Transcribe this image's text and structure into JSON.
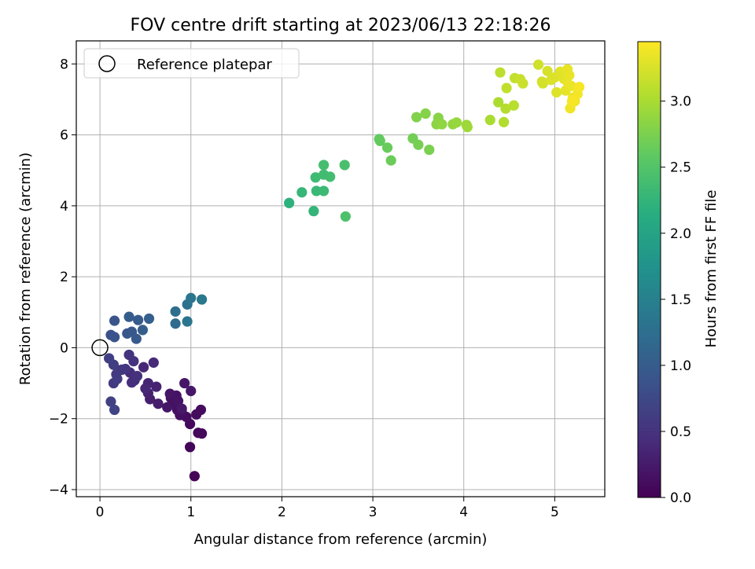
{
  "chart_data": {
    "type": "scatter",
    "title": "FOV centre drift starting at 2023/06/13 22:18:26",
    "xlabel": "Angular distance from reference (arcmin)",
    "ylabel": "Rotation from reference (arcmin)",
    "xlim": [
      -0.26,
      5.55
    ],
    "ylim": [
      -4.2,
      8.65
    ],
    "xticks": [
      0,
      1,
      2,
      3,
      4,
      5
    ],
    "xtick_labels": [
      "0",
      "1",
      "2",
      "3",
      "4",
      "5"
    ],
    "yticks": [
      -4,
      -2,
      0,
      2,
      4,
      6,
      8
    ],
    "ytick_labels": [
      "−4",
      "−2",
      "0",
      "2",
      "4",
      "6",
      "8"
    ],
    "grid": true,
    "legend": {
      "position": "top-left",
      "entries": [
        "Reference platepar"
      ]
    },
    "reference_point": {
      "x": 0,
      "y": 0,
      "label": "Reference platepar"
    },
    "colorbar": {
      "label": "Hours from first FF file",
      "range": [
        0,
        3.45
      ],
      "ticks": [
        0,
        0.5,
        1,
        1.5,
        2,
        2.5,
        3
      ],
      "tick_labels": [
        "0.0",
        "0.5",
        "1.0",
        "1.5",
        "2.0",
        "2.5",
        "3.0"
      ],
      "colormap": "viridis"
    },
    "points": [
      [
        1.04,
        -3.62,
        0.02
      ],
      [
        0.99,
        -2.8,
        0.05
      ],
      [
        1.08,
        -2.4,
        0.07
      ],
      [
        1.12,
        -2.42,
        0.08
      ],
      [
        0.99,
        -2.15,
        0.09
      ],
      [
        1.06,
        -1.88,
        0.1
      ],
      [
        1.11,
        -1.75,
        0.11
      ],
      [
        0.95,
        -1.95,
        0.12
      ],
      [
        0.9,
        -1.82,
        0.13
      ],
      [
        0.88,
        -1.9,
        0.14
      ],
      [
        0.85,
        -1.75,
        0.15
      ],
      [
        0.8,
        -1.55,
        0.16
      ],
      [
        0.78,
        -1.42,
        0.17
      ],
      [
        0.84,
        -1.35,
        0.18
      ],
      [
        0.86,
        -1.5,
        0.19
      ],
      [
        0.77,
        -1.3,
        0.2
      ],
      [
        0.74,
        -1.68,
        0.21
      ],
      [
        0.93,
        -1.0,
        0.22
      ],
      [
        1.0,
        -1.22,
        0.23
      ],
      [
        0.9,
        -1.72,
        0.24
      ],
      [
        0.64,
        -1.58,
        0.26
      ],
      [
        0.55,
        -1.45,
        0.28
      ],
      [
        0.53,
        -1.28,
        0.3
      ],
      [
        0.62,
        -1.1,
        0.32
      ],
      [
        0.53,
        -1.0,
        0.34
      ],
      [
        0.5,
        -1.15,
        0.36
      ],
      [
        0.48,
        -0.55,
        0.38
      ],
      [
        0.59,
        -0.42,
        0.4
      ],
      [
        0.38,
        -0.92,
        0.42
      ],
      [
        0.33,
        -0.7,
        0.44
      ],
      [
        0.35,
        -0.98,
        0.46
      ],
      [
        0.41,
        -0.8,
        0.48
      ],
      [
        0.37,
        -0.38,
        0.5
      ],
      [
        0.32,
        -0.2,
        0.52
      ],
      [
        0.28,
        -0.6,
        0.54
      ],
      [
        0.24,
        -0.62,
        0.56
      ],
      [
        0.18,
        -0.75,
        0.58
      ],
      [
        0.15,
        -1.0,
        0.6
      ],
      [
        0.19,
        -0.88,
        0.62
      ],
      [
        0.15,
        -0.48,
        0.63
      ],
      [
        0.1,
        -0.3,
        0.64
      ],
      [
        0.12,
        -1.52,
        0.66
      ],
      [
        0.16,
        -1.75,
        0.7
      ],
      [
        0.12,
        0.36,
        0.85
      ],
      [
        0.16,
        0.3,
        0.88
      ],
      [
        0.16,
        0.76,
        0.9
      ],
      [
        0.3,
        0.4,
        0.92
      ],
      [
        0.35,
        0.45,
        0.94
      ],
      [
        0.4,
        0.25,
        0.96
      ],
      [
        0.42,
        0.78,
        0.98
      ],
      [
        0.32,
        0.87,
        1.0
      ],
      [
        0.47,
        0.5,
        1.02
      ],
      [
        0.54,
        0.82,
        1.04
      ],
      [
        0.83,
        0.68,
        1.2
      ],
      [
        0.83,
        1.02,
        1.25
      ],
      [
        0.96,
        1.22,
        1.3
      ],
      [
        0.96,
        0.74,
        1.33
      ],
      [
        1.0,
        1.4,
        1.35
      ],
      [
        1.12,
        1.36,
        1.38
      ],
      [
        2.08,
        4.08,
        2.2
      ],
      [
        2.35,
        3.85,
        2.25
      ],
      [
        2.22,
        4.38,
        2.28
      ],
      [
        2.38,
        4.42,
        2.3
      ],
      [
        2.46,
        4.42,
        2.32
      ],
      [
        2.37,
        4.8,
        2.34
      ],
      [
        2.46,
        4.88,
        2.36
      ],
      [
        2.53,
        4.82,
        2.38
      ],
      [
        2.46,
        5.15,
        2.4
      ],
      [
        2.69,
        5.15,
        2.42
      ],
      [
        2.7,
        3.7,
        2.45
      ],
      [
        3.07,
        5.88,
        2.6
      ],
      [
        3.08,
        5.83,
        2.62
      ],
      [
        3.16,
        5.64,
        2.64
      ],
      [
        3.2,
        5.28,
        2.66
      ],
      [
        3.44,
        5.9,
        2.7
      ],
      [
        3.5,
        5.72,
        2.72
      ],
      [
        3.62,
        5.58,
        2.74
      ],
      [
        3.48,
        6.5,
        2.78
      ],
      [
        3.58,
        6.6,
        2.8
      ],
      [
        3.72,
        6.48,
        2.82
      ],
      [
        3.7,
        6.3,
        2.84
      ],
      [
        3.76,
        6.3,
        2.86
      ],
      [
        3.88,
        6.3,
        2.88
      ],
      [
        3.92,
        6.35,
        2.9
      ],
      [
        4.03,
        6.28,
        2.92
      ],
      [
        4.04,
        6.22,
        2.94
      ],
      [
        4.29,
        6.42,
        3.0
      ],
      [
        4.38,
        6.92,
        3.02
      ],
      [
        4.44,
        6.36,
        3.04
      ],
      [
        4.46,
        6.74,
        3.06
      ],
      [
        4.55,
        6.83,
        3.08
      ],
      [
        4.4,
        7.76,
        3.1
      ],
      [
        4.47,
        7.32,
        3.12
      ],
      [
        4.56,
        7.6,
        3.14
      ],
      [
        4.62,
        7.57,
        3.16
      ],
      [
        4.65,
        7.45,
        3.18
      ],
      [
        4.82,
        7.98,
        3.2
      ],
      [
        4.86,
        7.5,
        3.22
      ],
      [
        4.87,
        7.45,
        3.23
      ],
      [
        4.92,
        7.8,
        3.24
      ],
      [
        4.96,
        7.55,
        3.26
      ],
      [
        5.0,
        7.62,
        3.27
      ],
      [
        5.02,
        7.2,
        3.28
      ],
      [
        5.06,
        7.78,
        3.29
      ],
      [
        5.09,
        7.72,
        3.3
      ],
      [
        5.1,
        7.58,
        3.31
      ],
      [
        5.12,
        7.25,
        3.32
      ],
      [
        5.14,
        7.85,
        3.33
      ],
      [
        5.15,
        7.42,
        3.34
      ],
      [
        5.16,
        7.68,
        3.35
      ],
      [
        5.18,
        7.38,
        3.36
      ],
      [
        5.2,
        7.05,
        3.37
      ],
      [
        5.17,
        6.75,
        3.38
      ],
      [
        5.22,
        6.95,
        3.39
      ],
      [
        5.25,
        7.15,
        3.4
      ],
      [
        5.27,
        7.35,
        3.41
      ],
      [
        5.19,
        6.95,
        3.42
      ]
    ]
  }
}
